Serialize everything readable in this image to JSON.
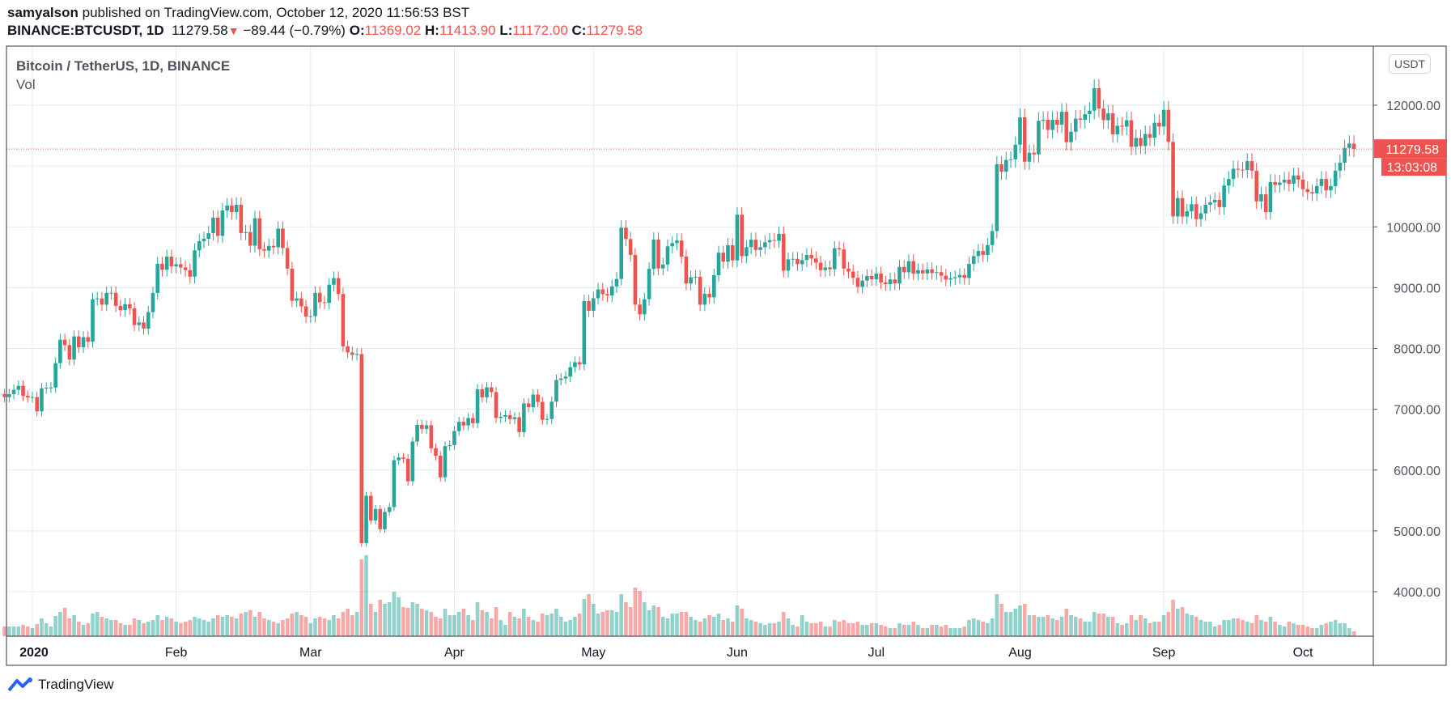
{
  "header": {
    "publisher": "samyalson",
    "published_text": "published on TradingView.com, October 12, 2020 11:56:53 BST",
    "symbol": "BINANCE:BTCUSDT, 1D",
    "last": "11279.58",
    "change": "−89.44 (−0.79%)",
    "o_label": "O:",
    "o": "11369.02",
    "h_label": "H:",
    "h": "11413.90",
    "l_label": "L:",
    "l": "11172.00",
    "c_label": "C:",
    "c": "11279.58"
  },
  "legend": {
    "title": "Bitcoin / TetherUS, 1D, BINANCE",
    "vol": "Vol"
  },
  "currency": "USDT",
  "price_label": "11279.58",
  "countdown": "13:03:08",
  "branding": "TradingView",
  "colors": {
    "up": "#26a69a",
    "down": "#ef5350",
    "grid": "#e1ecf2"
  },
  "chart_data": {
    "type": "candlestick",
    "title": "Bitcoin / TetherUS, 1D, BINANCE",
    "start_date": "2019-12-26",
    "ylim": [
      3300,
      12700
    ],
    "y_ticks": [
      4000,
      5000,
      6000,
      7000,
      8000,
      9000,
      10000,
      11000,
      12000
    ],
    "y_tick_labels": [
      "4000.00",
      "5000.00",
      "6000.00",
      "7000.00",
      "8000.00",
      "9000.00",
      "10000.00",
      "",
      "12000.00"
    ],
    "x_ticks": [
      {
        "label": "2020",
        "index": 6
      },
      {
        "label": "Feb",
        "index": 37
      },
      {
        "label": "Mar",
        "index": 66
      },
      {
        "label": "Apr",
        "index": 97
      },
      {
        "label": "May",
        "index": 127
      },
      {
        "label": "Jun",
        "index": 158
      },
      {
        "label": "Jul",
        "index": 188
      },
      {
        "label": "Aug",
        "index": 219
      },
      {
        "label": "Sep",
        "index": 250
      },
      {
        "label": "Oct",
        "index": 280
      }
    ],
    "first_open": 7250,
    "last_price": 11279.58,
    "closes": [
      7200,
      7250,
      7320,
      7385,
      7220,
      7195,
      7200,
      6965,
      7345,
      7355,
      7358,
      7759,
      8145,
      8055,
      7817,
      8198,
      8021,
      8185,
      8111,
      8810,
      8822,
      8720,
      8914,
      8916,
      8700,
      8631,
      8727,
      8660,
      8385,
      8428,
      8327,
      8597,
      8913,
      9393,
      9295,
      9510,
      9350,
      9385,
      9333,
      9289,
      9181,
      9614,
      9764,
      9804,
      9895,
      10151,
      9852,
      10269,
      10350,
      10242,
      10363,
      9899,
      9914,
      9690,
      10142,
      9633,
      9608,
      9687,
      9664,
      9971,
      9652,
      9313,
      8785,
      8823,
      8693,
      8523,
      8532,
      8915,
      8760,
      8750,
      9049,
      9157,
      8897,
      8035,
      7935,
      7894,
      7908,
      4800,
      5578,
      5172,
      5361,
      5028,
      5312,
      5392,
      6162,
      6208,
      6186,
      5816,
      6469,
      6744,
      6677,
      6737,
      6359,
      6236,
      5881,
      6394,
      6410,
      6642,
      6794,
      6734,
      6856,
      6772,
      7329,
      7197,
      7361,
      7283,
      6858,
      6876,
      6903,
      6838,
      6869,
      6624,
      7096,
      7034,
      7242,
      7121,
      6826,
      6841,
      7125,
      7482,
      7505,
      7538,
      7693,
      7774,
      7738,
      8778,
      8620,
      8826,
      8972,
      8894,
      8871,
      9021,
      9143,
      9986,
      9800,
      9539,
      8722,
      8561,
      8810,
      9309,
      9791,
      9316,
      9381,
      9680,
      9733,
      9775,
      9511,
      9068,
      9170,
      9179,
      8720,
      8900,
      8841,
      9204,
      9575,
      9427,
      9697,
      9448,
      10200,
      9518,
      9666,
      9789,
      9621,
      9666,
      9746,
      9782,
      9772,
      9885,
      9280,
      9465,
      9474,
      9386,
      9454,
      9538,
      9480,
      9411,
      9288,
      9332,
      9303,
      9648,
      9629,
      9313,
      9264,
      9162,
      9012,
      9116,
      9192,
      9138,
      9232,
      9086,
      9058,
      9135,
      9069,
      9342,
      9253,
      9436,
      9232,
      9288,
      9234,
      9302,
      9242,
      9255,
      9197,
      9133,
      9154,
      9170,
      9208,
      9160,
      9390,
      9518,
      9603,
      9538,
      9700,
      9931,
      11029,
      10906,
      11100,
      11111,
      11351,
      11801,
      11071,
      11219,
      11191,
      11744,
      11762,
      11594,
      11761,
      11681,
      11892,
      11392,
      11564,
      11780,
      11760,
      11852,
      11911,
      12281,
      11945,
      11754,
      11866,
      11522,
      11663,
      11648,
      11753,
      11317,
      11461,
      11330,
      11527,
      11465,
      11712,
      11650,
      11924,
      11397,
      10171,
      10472,
      10169,
      10255,
      10373,
      10127,
      10222,
      10364,
      10403,
      10443,
      10324,
      10680,
      10787,
      10955,
      10940,
      10934,
      11080,
      10921,
      10418,
      10535,
      10241,
      10736,
      10690,
      10728,
      10775,
      10709,
      10845,
      10777,
      10619,
      10571,
      10550,
      10671,
      10787,
      10600,
      10669,
      10925,
      11055,
      11297,
      11369,
      11279.58
    ],
    "volumes": [
      12,
      12,
      12,
      12,
      14,
      12,
      10,
      15,
      22,
      16,
      12,
      25,
      30,
      35,
      22,
      26,
      18,
      14,
      16,
      28,
      30,
      24,
      22,
      20,
      20,
      16,
      14,
      14,
      22,
      20,
      16,
      18,
      20,
      26,
      20,
      24,
      22,
      18,
      16,
      18,
      20,
      24,
      22,
      20,
      18,
      22,
      26,
      24,
      26,
      24,
      22,
      28,
      30,
      32,
      24,
      30,
      22,
      20,
      18,
      16,
      20,
      22,
      28,
      30,
      26,
      24,
      16,
      22,
      24,
      22,
      20,
      26,
      22,
      30,
      34,
      26,
      30,
      95,
      100,
      40,
      30,
      45,
      40,
      42,
      55,
      48,
      36,
      35,
      42,
      40,
      34,
      32,
      30,
      24,
      22,
      34,
      26,
      26,
      30,
      34,
      26,
      20,
      42,
      32,
      30,
      22,
      36,
      20,
      14,
      30,
      24,
      22,
      34,
      24,
      20,
      18,
      28,
      26,
      28,
      34,
      24,
      18,
      20,
      24,
      28,
      46,
      52,
      40,
      28,
      30,
      32,
      32,
      30,
      52,
      42,
      36,
      60,
      56,
      42,
      32,
      38,
      36,
      24,
      22,
      28,
      28,
      30,
      30,
      24,
      20,
      18,
      22,
      26,
      24,
      28,
      20,
      22,
      18,
      38,
      34,
      22,
      20,
      18,
      16,
      14,
      16,
      16,
      18,
      30,
      22,
      14,
      12,
      26,
      18,
      16,
      16,
      18,
      12,
      12,
      20,
      18,
      20,
      16,
      16,
      18,
      14,
      14,
      16,
      16,
      14,
      12,
      10,
      10,
      16,
      14,
      14,
      18,
      14,
      10,
      10,
      14,
      14,
      12,
      14,
      10,
      10,
      10,
      12,
      20,
      22,
      20,
      18,
      16,
      22,
      52,
      40,
      30,
      30,
      34,
      38,
      40,
      26,
      26,
      24,
      24,
      26,
      22,
      20,
      24,
      34,
      26,
      24,
      22,
      18,
      18,
      30,
      28,
      28,
      24,
      24,
      16,
      14,
      16,
      26,
      20,
      26,
      22,
      16,
      18,
      18,
      26,
      30,
      45,
      34,
      36,
      28,
      26,
      24,
      20,
      18,
      18,
      12,
      14,
      20,
      20,
      22,
      22,
      20,
      18,
      16,
      26,
      20,
      18,
      24,
      18,
      14,
      12,
      18,
      16,
      14,
      14,
      12,
      10,
      10,
      14,
      16,
      18,
      20,
      16,
      16,
      10,
      6
    ]
  }
}
